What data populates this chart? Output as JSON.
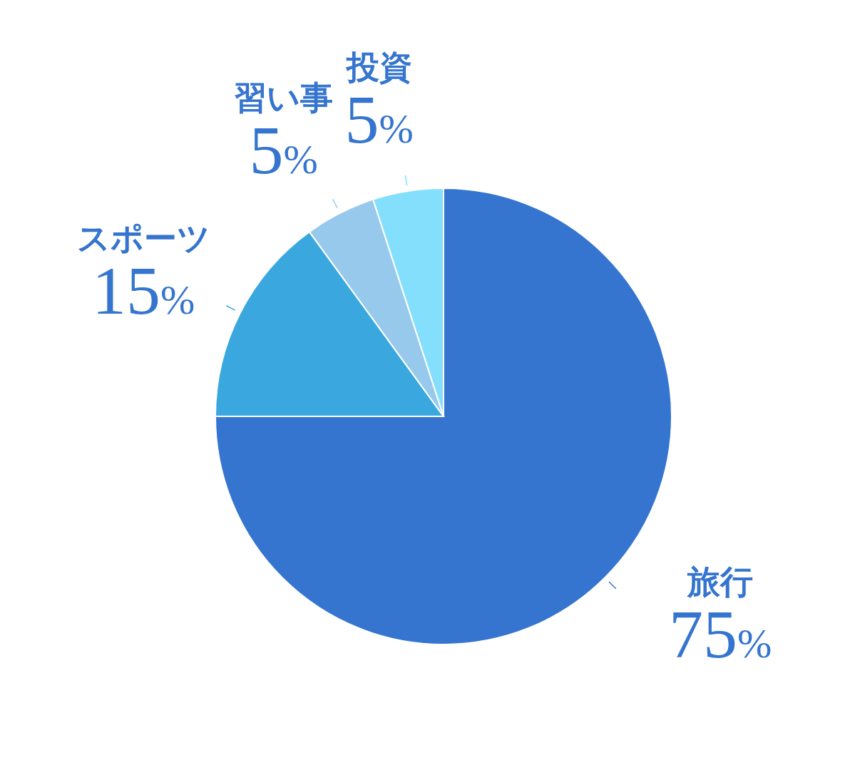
{
  "chart_data": {
    "type": "pie",
    "categories": [
      "旅行",
      "スポーツ",
      "習い事",
      "投資"
    ],
    "values": [
      75,
      15,
      5,
      5
    ],
    "colors": [
      "#3575cf",
      "#3aa8df",
      "#97c9ed",
      "#84dffc"
    ],
    "value_labels": [
      "75%",
      "15%",
      "5%",
      "5%"
    ]
  }
}
